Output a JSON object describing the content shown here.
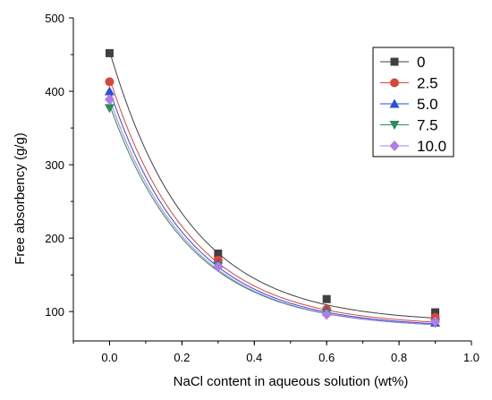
{
  "chart_data": {
    "type": "scatter",
    "title": "",
    "xlabel": "NaCl content in aqueous solution (wt%)",
    "ylabel": "Free absorbency (g/g)",
    "xlim": [
      -0.1,
      1.0
    ],
    "ylim": [
      60,
      500
    ],
    "xticks": [
      "0.0",
      "0.2",
      "0.4",
      "0.6",
      "0.8",
      "1.0"
    ],
    "yticks": [
      "100",
      "200",
      "300",
      "400",
      "500"
    ],
    "grid": false,
    "legend_position": "top-right",
    "fit_curves": "exponential decay fit per series",
    "series": [
      {
        "name": "0",
        "color": "#404040",
        "marker": "square",
        "x": [
          0,
          0.3,
          0.6,
          0.9
        ],
        "y": [
          452,
          179,
          117,
          99
        ]
      },
      {
        "name": "2.5",
        "color": "#d9463a",
        "marker": "circle",
        "x": [
          0,
          0.3,
          0.6,
          0.9
        ],
        "y": [
          413,
          170,
          103,
          92
        ]
      },
      {
        "name": "5.0",
        "color": "#2a4fd6",
        "marker": "triangle-up",
        "x": [
          0,
          0.3,
          0.6,
          0.9
        ],
        "y": [
          400,
          165,
          100,
          85
        ]
      },
      {
        "name": "7.5",
        "color": "#2e8b57",
        "marker": "triangle-down",
        "x": [
          0,
          0.3,
          0.6,
          0.9
        ],
        "y": [
          377,
          162,
          98,
          84
        ]
      },
      {
        "name": "10.0",
        "color": "#b07de8",
        "marker": "diamond",
        "x": [
          0,
          0.3,
          0.6,
          0.9
        ],
        "y": [
          389,
          161,
          96,
          86
        ]
      }
    ],
    "fits": [
      {
        "series": "0",
        "color": "#404040",
        "y0": 85,
        "A": 370,
        "t": 0.22
      },
      {
        "series": "2.5",
        "color": "#d9463a",
        "y0": 80,
        "A": 338,
        "t": 0.22
      },
      {
        "series": "5.0",
        "color": "#2a4fd6",
        "y0": 78,
        "A": 324,
        "t": 0.22
      },
      {
        "series": "7.5",
        "color": "#2e8b57",
        "y0": 77,
        "A": 305,
        "t": 0.22
      },
      {
        "series": "10.0",
        "color": "#b07de8",
        "y0": 77,
        "A": 313,
        "t": 0.22
      }
    ]
  }
}
